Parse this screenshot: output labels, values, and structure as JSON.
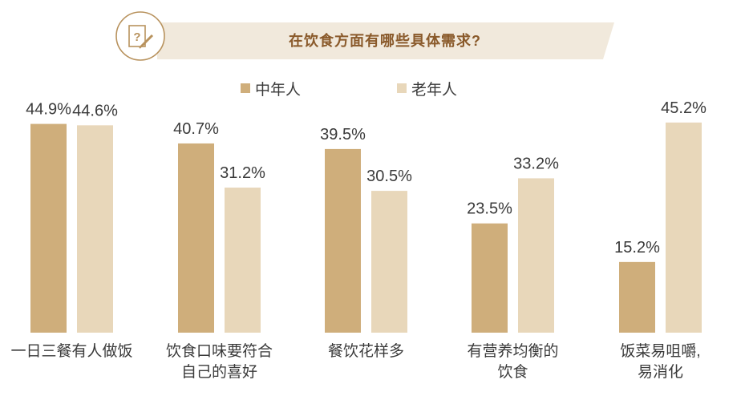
{
  "header": {
    "title": "在饮食方面有哪些具体需求?",
    "icon": "question-edit-icon"
  },
  "colors": {
    "middle_aged": "#cfae7b",
    "elderly": "#e8d7ba",
    "banner_fill": "#f1e9dc",
    "accent": "#b8925d"
  },
  "chart_data": {
    "type": "bar",
    "title": "在饮食方面有哪些具体需求?",
    "categories": [
      "一日三餐有人做饭",
      "饮食口味要符合\n自己的喜好",
      "餐饮花样多",
      "有营养均衡的\n饮食",
      "饭菜易咀嚼,\n易消化"
    ],
    "series": [
      {
        "name": "中年人",
        "values": [
          44.9,
          40.7,
          39.5,
          23.5,
          15.2
        ],
        "labels": [
          "44.9%",
          "40.7%",
          "39.5%",
          "23.5%",
          "15.2%"
        ]
      },
      {
        "name": "老年人",
        "values": [
          44.6,
          31.2,
          30.5,
          33.2,
          45.2
        ],
        "labels": [
          "44.6%",
          "31.2%",
          "30.5%",
          "33.2%",
          "45.2%"
        ]
      }
    ],
    "unit": "%",
    "ylim": [
      0,
      47
    ],
    "legend": "top-center",
    "grid": false
  }
}
